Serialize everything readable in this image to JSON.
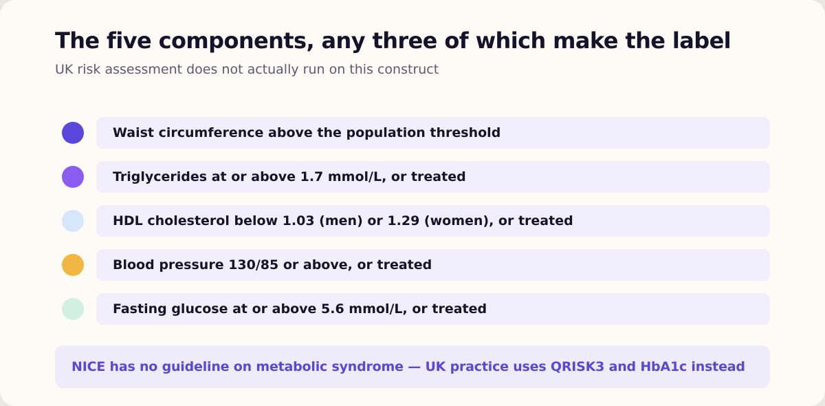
{
  "header": {
    "title": "The five components, any three of which make the label",
    "subtitle": "UK risk assessment does not actually run on this construct"
  },
  "components": [
    {
      "label": "Waist circumference above the population threshold",
      "dot_color": "#5b47dc"
    },
    {
      "label": "Triglycerides at or above 1.7 mmol/L, or treated",
      "dot_color": "#8b5cf0"
    },
    {
      "label": "HDL cholesterol below 1.03 (men) or 1.29 (women), or treated",
      "dot_color": "#d7e6fb"
    },
    {
      "label": "Blood pressure 130/85 or above, or treated",
      "dot_color": "#f2b642"
    },
    {
      "label": "Fasting glucose at or above 5.6 mmol/L, or treated",
      "dot_color": "#d2f0e1"
    }
  ],
  "footer": {
    "note": "NICE has no guideline on metabolic syndrome — UK practice uses QRISK3 and HbA1c instead"
  },
  "colors": {
    "card_background": "#fdfbf6",
    "row_background": "#f1effb",
    "note_background": "#eeecfb",
    "note_text": "#5b47d6",
    "title_text": "#15132b"
  }
}
